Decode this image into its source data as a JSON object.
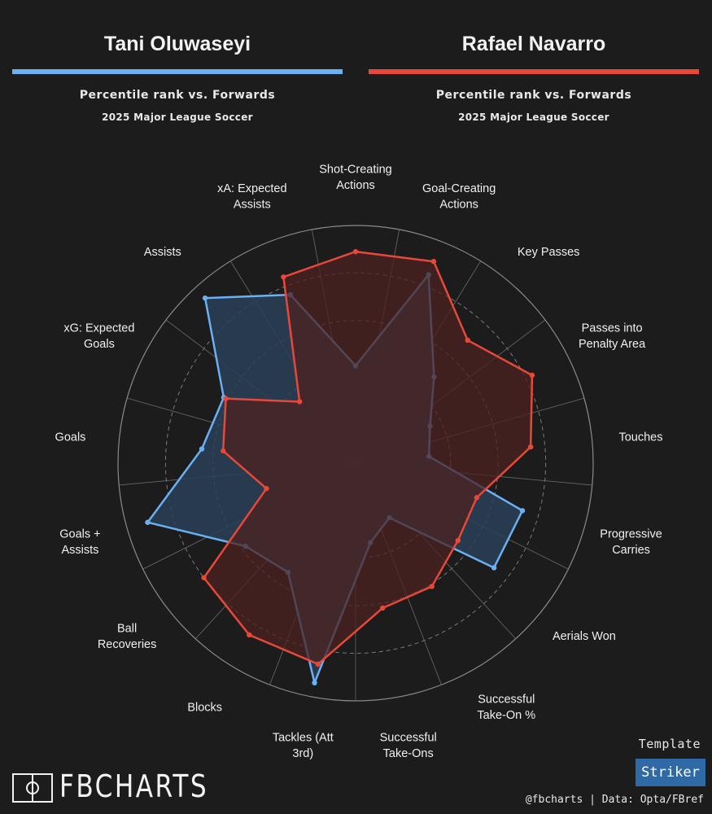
{
  "players": [
    {
      "name": "Tani Oluwaseyi",
      "color": "#6ab0f3",
      "subtitle": "Percentile rank vs. Forwards",
      "competition": "2025 Major League Soccer"
    },
    {
      "name": "Rafael Navarro",
      "color": "#e8483a",
      "subtitle": "Percentile rank vs. Forwards",
      "competition": "2025 Major League Soccer"
    }
  ],
  "chart_data": {
    "type": "radar",
    "scale": [
      0,
      100
    ],
    "rings": [
      20,
      40,
      60,
      80,
      100
    ],
    "grid": true,
    "categories": [
      "Shot-Creating Actions",
      "Goal-Creating Actions",
      "Key Passes",
      "Passes into Penalty Area",
      "Touches",
      "Progressive Carries",
      "Aerials Won",
      "Successful Take-On %",
      "Successful Take-Ons",
      "Tackles (Att 3rd)",
      "Blocks",
      "Ball Recoveries",
      "Goals + Assists",
      "Goals",
      "xG: Expected Goals",
      "Assists",
      "xA: Expected Assists"
    ],
    "series": [
      {
        "name": "Tani Oluwaseyi",
        "color": "#6ab0f3",
        "fill": "#2a3f57",
        "values": [
          41,
          85,
          49,
          35,
          31,
          73,
          73,
          27,
          34,
          94,
          54,
          58,
          91,
          65,
          62,
          94,
          76
        ]
      },
      {
        "name": "Rafael Navarro",
        "color": "#e8483a",
        "fill": "#4b2220",
        "values": [
          89,
          91,
          70,
          83,
          74,
          53,
          54,
          61,
          62,
          86,
          85,
          80,
          39,
          56,
          61,
          35,
          84
        ]
      }
    ]
  },
  "brand": {
    "name": "FBCHARTS"
  },
  "template": {
    "label": "Template",
    "value": "Striker"
  },
  "footer": {
    "credit": "@fbcharts | Data: Opta/FBref"
  }
}
